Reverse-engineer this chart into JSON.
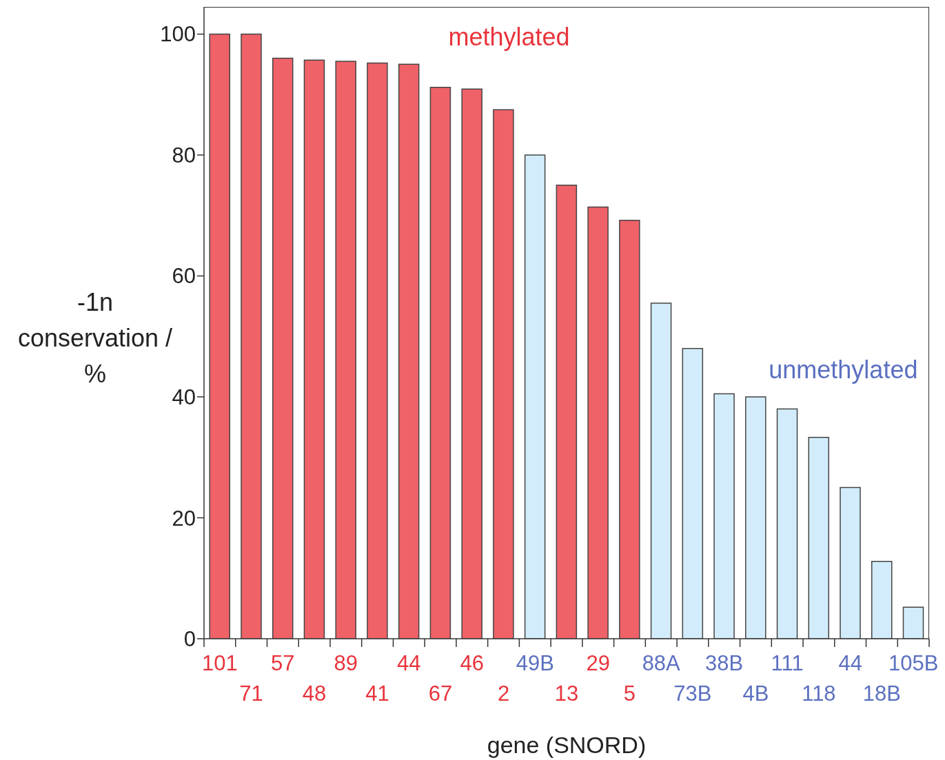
{
  "chart_data": {
    "type": "bar",
    "xlabel": "gene (SNORD)",
    "ylabel": "-1n conservation / %",
    "categories": [
      "101",
      "71",
      "57",
      "48",
      "89",
      "41",
      "44",
      "67",
      "46",
      "2",
      "49B",
      "13",
      "29",
      "5",
      "88A",
      "73B",
      "38B",
      "4B",
      "111",
      "118",
      "44",
      "18B",
      "105B"
    ],
    "series": [
      {
        "name": "methylated",
        "color": "#ef6268",
        "values": [
          100,
          100,
          96,
          95.7,
          95.5,
          95.2,
          95,
          91.2,
          90.9,
          87.5,
          null,
          75,
          71.4,
          69.2,
          null,
          null,
          null,
          null,
          null,
          null,
          null,
          null,
          null
        ]
      },
      {
        "name": "unmethylated",
        "color": "#d2ecfb",
        "values": [
          null,
          null,
          null,
          null,
          null,
          null,
          null,
          null,
          null,
          null,
          80,
          null,
          null,
          null,
          55.5,
          48,
          40.5,
          40,
          38,
          33.3,
          25,
          12.8,
          5.2
        ]
      }
    ],
    "ylim": [
      0,
      104.5
    ],
    "yticks": [
      0,
      20,
      40,
      60,
      80,
      100
    ],
    "grid": false,
    "legend": false
  }
}
